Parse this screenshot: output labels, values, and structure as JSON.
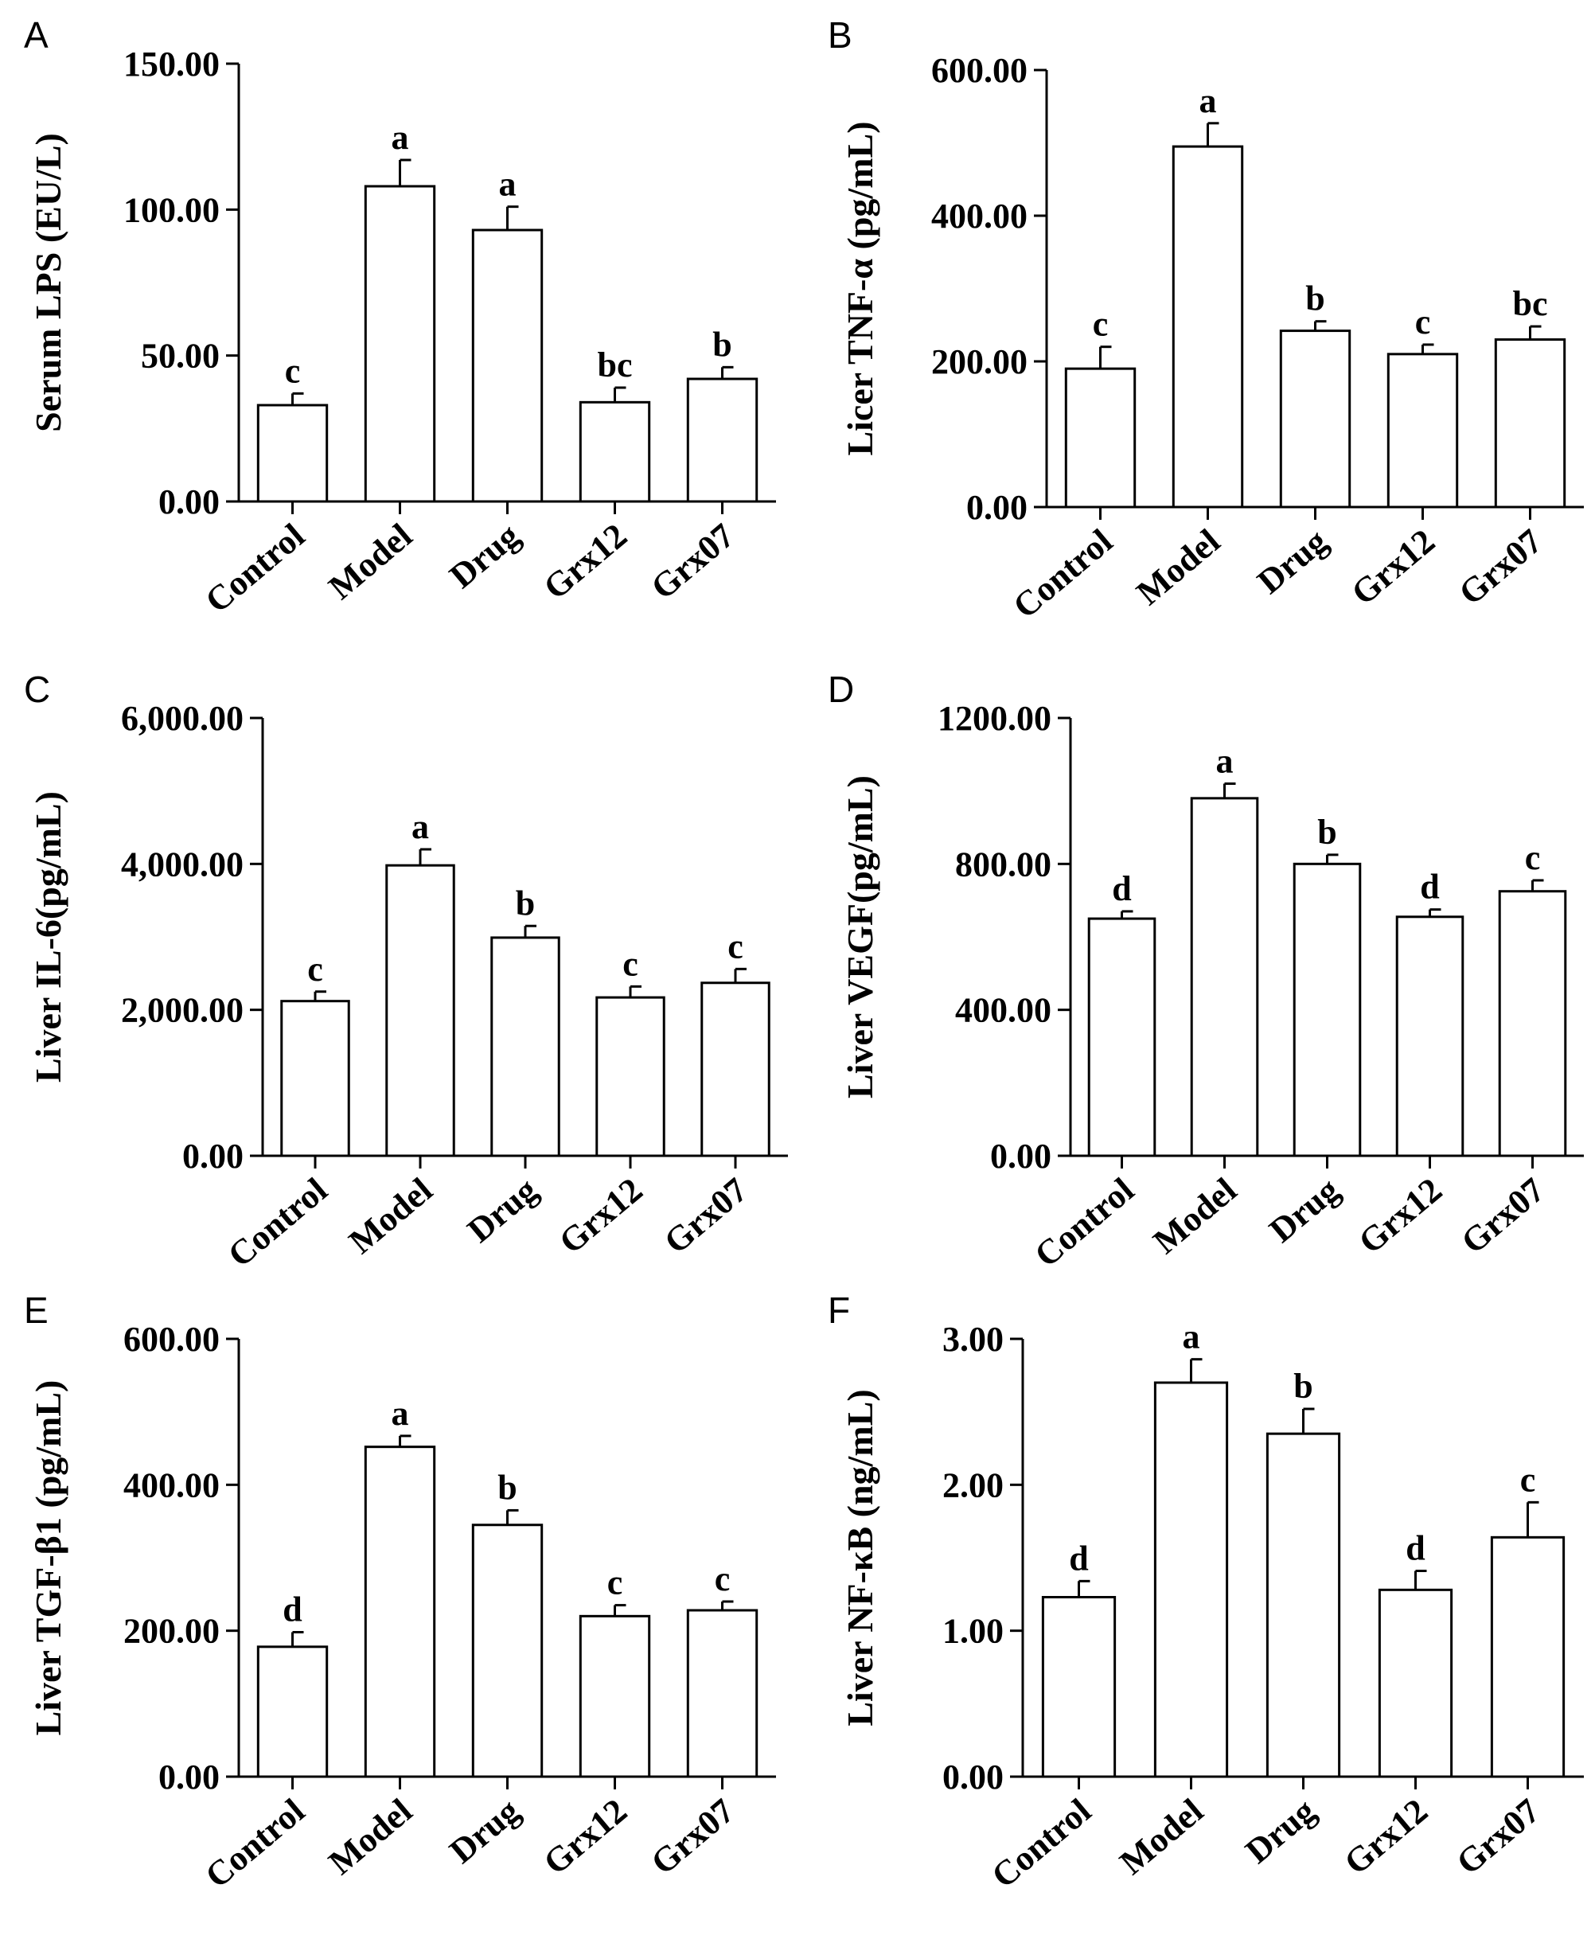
{
  "chart_data": [
    {
      "panel": "A",
      "type": "bar",
      "categories": [
        "Control",
        "Model",
        "Drug",
        "Grx12",
        "Grx07"
      ],
      "values": [
        33,
        108,
        93,
        34,
        42
      ],
      "errors": [
        4,
        9,
        8,
        5,
        4
      ],
      "significance": [
        "c",
        "a",
        "a",
        "bc",
        "b"
      ],
      "ylabel": "Serum LPS (EU/L)",
      "ylim": [
        0,
        150
      ],
      "yticks": [
        "0.00",
        "50.00",
        "100.00",
        "150.00"
      ]
    },
    {
      "panel": "B",
      "type": "bar",
      "categories": [
        "Control",
        "Model",
        "Drug",
        "Grx12",
        "Grx07"
      ],
      "values": [
        190,
        495,
        242,
        210,
        230
      ],
      "errors": [
        30,
        32,
        13,
        13,
        18
      ],
      "significance": [
        "c",
        "a",
        "b",
        "c",
        "bc"
      ],
      "ylabel": "Licer TNF-α (pg/mL)",
      "ylim": [
        0,
        600
      ],
      "yticks": [
        "0.00",
        "200.00",
        "400.00",
        "600.00"
      ]
    },
    {
      "panel": "C",
      "type": "bar",
      "categories": [
        "Control",
        "Model",
        "Drug",
        "Grx12",
        "Grx07"
      ],
      "values": [
        2120,
        3980,
        2990,
        2170,
        2370
      ],
      "errors": [
        130,
        220,
        160,
        150,
        190
      ],
      "significance": [
        "c",
        "a",
        "b",
        "c",
        "c"
      ],
      "ylabel": "Liver IL-6(pg/mL)",
      "ylim": [
        0,
        6000
      ],
      "yticks": [
        "0.00",
        "2,000.00",
        "4,000.00",
        "6,000.00"
      ]
    },
    {
      "panel": "D",
      "type": "bar",
      "categories": [
        "Control",
        "Model",
        "Drug",
        "Grx12",
        "Grx07"
      ],
      "values": [
        650,
        980,
        800,
        655,
        725
      ],
      "errors": [
        20,
        40,
        25,
        20,
        30
      ],
      "significance": [
        "d",
        "a",
        "b",
        "d",
        "c"
      ],
      "ylabel": "Liver VEGF(pg/mL)",
      "ylim": [
        0,
        1200
      ],
      "yticks": [
        "0.00",
        "400.00",
        "800.00",
        "1200.00"
      ]
    },
    {
      "panel": "E",
      "type": "bar",
      "categories": [
        "Control",
        "Model",
        "Drug",
        "Grx12",
        "Grx07"
      ],
      "values": [
        178,
        452,
        345,
        220,
        228
      ],
      "errors": [
        20,
        15,
        20,
        15,
        12
      ],
      "significance": [
        "d",
        "a",
        "b",
        "c",
        "c"
      ],
      "ylabel": "Liver TGF-β1 (pg/mL)",
      "ylim": [
        0,
        600
      ],
      "yticks": [
        "0.00",
        "200.00",
        "400.00",
        "600.00"
      ]
    },
    {
      "panel": "F",
      "type": "bar",
      "categories": [
        "Control",
        "Model",
        "Drug",
        "Grx12",
        "Grx07"
      ],
      "values": [
        1.23,
        2.7,
        2.35,
        1.28,
        1.64
      ],
      "errors": [
        0.11,
        0.16,
        0.17,
        0.13,
        0.24
      ],
      "significance": [
        "d",
        "a",
        "b",
        "d",
        "c"
      ],
      "ylabel": "Liver NF-κB (ng/mL)",
      "ylim": [
        0,
        3
      ],
      "yticks": [
        "0.00",
        "1.00",
        "2.00",
        "3.00"
      ]
    }
  ],
  "colors": {
    "bar_fill": "#ffffff",
    "stroke": "#000000",
    "text": "#000000"
  }
}
